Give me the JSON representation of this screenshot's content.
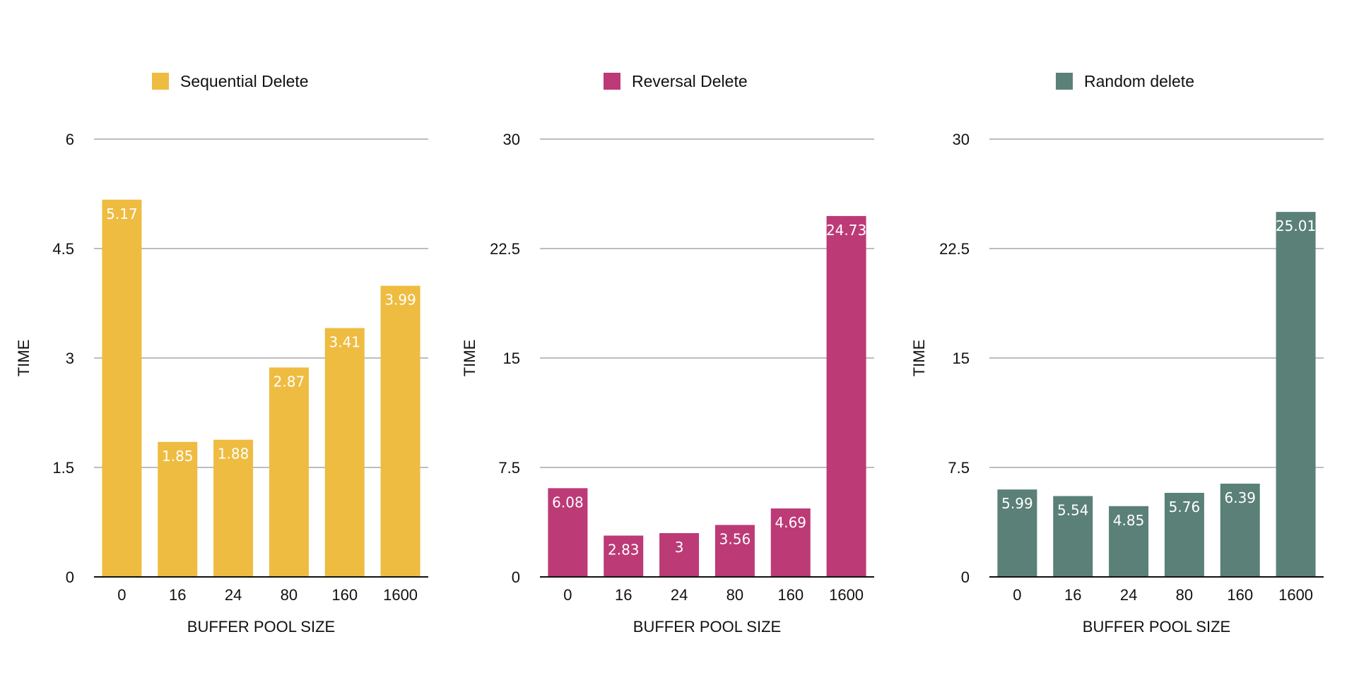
{
  "chart_data": [
    {
      "type": "bar",
      "legend": "Sequential Delete",
      "color": "#EEBC41",
      "categories": [
        "0",
        "16",
        "24",
        "80",
        "160",
        "1600"
      ],
      "values": [
        5.17,
        1.85,
        1.88,
        2.87,
        3.41,
        3.99
      ],
      "value_labels": [
        "5.17",
        "1.85",
        "1.88",
        "2.87",
        "3.41",
        "3.99"
      ],
      "xlabel": "BUFFER POOL SIZE",
      "ylabel": "TIME",
      "ylim": [
        0,
        6
      ],
      "yticks": [
        0,
        1.5,
        3,
        4.5,
        6
      ],
      "ytick_labels": [
        "0",
        "1.5",
        "3",
        "4.5",
        "6"
      ],
      "grid": true,
      "legend_position": "top"
    },
    {
      "type": "bar",
      "legend": "Reversal Delete",
      "color": "#BC3A76",
      "categories": [
        "0",
        "16",
        "24",
        "80",
        "160",
        "1600"
      ],
      "values": [
        6.08,
        2.83,
        3,
        3.56,
        4.69,
        24.73
      ],
      "value_labels": [
        "6.08",
        "2.83",
        "3",
        "3.56",
        "4.69",
        "24.73"
      ],
      "xlabel": "BUFFER POOL SIZE",
      "ylabel": "TIME",
      "ylim": [
        0,
        30
      ],
      "yticks": [
        0,
        7.5,
        15,
        22.5,
        30
      ],
      "ytick_labels": [
        "0",
        "7.5",
        "15",
        "22.5",
        "30"
      ],
      "grid": true,
      "legend_position": "top"
    },
    {
      "type": "bar",
      "legend": "Random delete",
      "color": "#5A8078",
      "categories": [
        "0",
        "16",
        "24",
        "80",
        "160",
        "1600"
      ],
      "values": [
        5.99,
        5.54,
        4.85,
        5.76,
        6.39,
        25.01
      ],
      "value_labels": [
        "5.99",
        "5.54",
        "4.85",
        "5.76",
        "6.39",
        "25.01"
      ],
      "xlabel": "BUFFER POOL SIZE",
      "ylabel": "TIME",
      "ylim": [
        0,
        30
      ],
      "yticks": [
        0,
        7.5,
        15,
        22.5,
        30
      ],
      "ytick_labels": [
        "0",
        "7.5",
        "15",
        "22.5",
        "30"
      ],
      "grid": true,
      "legend_position": "top"
    }
  ]
}
